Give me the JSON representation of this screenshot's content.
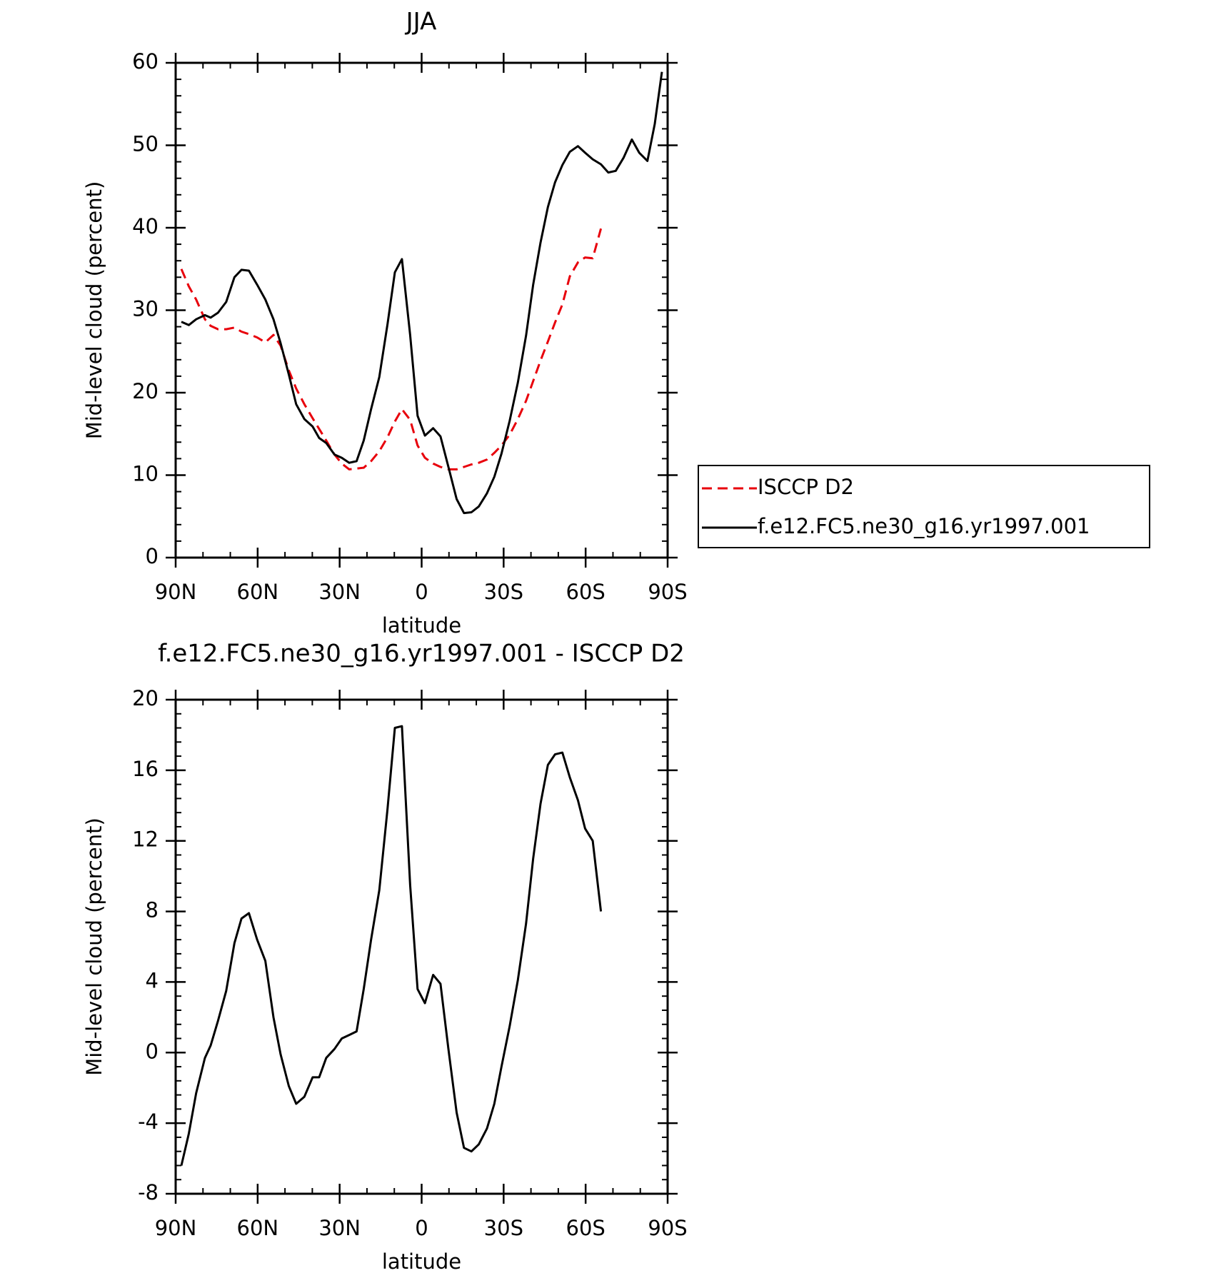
{
  "chart_data": [
    {
      "type": "line",
      "title": "JJA",
      "xlabel": "latitude",
      "ylabel": "Mid-level cloud (percent)",
      "x": [
        87.9,
        85.2,
        82.5,
        79.3,
        77.2,
        74.5,
        71.5,
        68.5,
        65.9,
        63.2,
        60.2,
        57.2,
        54.2,
        51.6,
        48.6,
        45.9,
        42.9,
        39.9,
        37.5,
        34.9,
        31.9,
        29.2,
        26.5,
        23.8,
        21.2,
        18.5,
        15.5,
        12.5,
        9.8,
        7.2,
        4.2,
        1.5,
        -1.2,
        -4.2,
        -6.9,
        -9.8,
        -12.8,
        -15.5,
        -18.2,
        -20.9,
        -23.9,
        -26.6,
        -29.2,
        -32.2,
        -35.2,
        -38.2,
        -40.8,
        -43.5,
        -46.2,
        -48.8,
        -51.5,
        -54.2,
        -57.2,
        -59.8,
        -62.6,
        -65.6,
        -68.3,
        -71.0,
        -73.9,
        -76.9,
        -79.6,
        -82.6,
        -85.3,
        -87.9
      ],
      "series": [
        {
          "name": "ISCCP D2",
          "color": "#e8000b",
          "dash": true,
          "values": [
            35.0,
            32.9,
            31.3,
            28.9,
            28.1,
            27.7,
            27.7,
            27.9,
            27.4,
            27.1,
            26.7,
            26.1,
            27.0,
            25.7,
            22.7,
            20.5,
            18.6,
            16.9,
            15.6,
            14.2,
            12.5,
            11.4,
            10.7,
            10.8,
            10.9,
            11.7,
            12.9,
            14.6,
            16.5,
            18.0,
            16.7,
            13.6,
            12.1,
            11.4,
            11.0,
            10.7,
            10.7,
            11.0,
            11.3,
            11.5,
            11.9,
            12.7,
            13.6,
            14.9,
            16.8,
            19.0,
            21.4,
            23.9,
            26.2,
            28.5,
            30.7,
            34.1,
            35.8,
            36.4,
            36.3,
            39.9,
            null,
            null,
            null,
            null,
            null,
            null,
            null,
            null
          ]
        },
        {
          "name": "f.e12.FC5.ne30_g16.yr1997.001",
          "color": "#000000",
          "dash": false,
          "values": [
            28.6,
            28.2,
            28.9,
            29.4,
            29.1,
            29.7,
            31.0,
            34.0,
            34.9,
            34.8,
            33.1,
            31.3,
            28.9,
            26.0,
            22.2,
            18.6,
            16.8,
            15.9,
            14.5,
            13.9,
            12.5,
            12.1,
            11.5,
            11.7,
            14.2,
            18.0,
            21.9,
            28.3,
            34.6,
            36.2,
            27.0,
            17.2,
            14.8,
            15.7,
            14.7,
            11.0,
            7.1,
            5.4,
            5.5,
            6.2,
            7.8,
            9.8,
            12.6,
            16.6,
            21.2,
            26.9,
            33.1,
            38.2,
            42.5,
            45.5,
            47.6,
            49.2,
            49.9,
            49.1,
            48.3,
            47.7,
            46.7,
            46.9,
            48.5,
            50.7,
            49.1,
            48.1,
            52.6,
            58.9
          ]
        }
      ],
      "xlim": [
        90,
        -90
      ],
      "xticks": [
        {
          "value": 90,
          "label": "90N"
        },
        {
          "value": 60,
          "label": "60N"
        },
        {
          "value": 30,
          "label": "30N"
        },
        0,
        {
          "value": -30,
          "label": "30S"
        },
        {
          "value": -60,
          "label": "60S"
        },
        {
          "value": -90,
          "label": "90S"
        }
      ],
      "ylim": [
        0,
        60
      ],
      "yticks": [
        0,
        10,
        20,
        30,
        40,
        50,
        60
      ],
      "grid": false,
      "legend": "right"
    },
    {
      "type": "line",
      "title": "f.e12.FC5.ne30_g16.yr1997.001 - ISCCP D2",
      "xlabel": "latitude",
      "ylabel": "Mid-level cloud (percent)",
      "x": [
        87.9,
        85.2,
        82.5,
        79.3,
        77.2,
        74.5,
        71.5,
        68.5,
        65.9,
        63.2,
        60.2,
        57.2,
        54.2,
        51.6,
        48.6,
        45.9,
        42.9,
        39.9,
        37.5,
        34.9,
        31.9,
        29.2,
        26.5,
        23.8,
        21.2,
        18.5,
        15.5,
        12.5,
        9.8,
        7.2,
        4.2,
        1.5,
        -1.2,
        -4.2,
        -6.9,
        -9.8,
        -12.8,
        -15.5,
        -18.2,
        -20.9,
        -23.9,
        -26.6,
        -29.2,
        -32.2,
        -35.2,
        -38.2,
        -40.8,
        -43.5,
        -46.2,
        -48.8,
        -51.5,
        -54.2,
        -57.2,
        -59.8,
        -62.6,
        -65.6
      ],
      "series": [
        {
          "color": "#000000",
          "dash": false,
          "values": [
            -6.4,
            -4.6,
            -2.3,
            -0.3,
            0.4,
            1.8,
            3.5,
            6.2,
            7.6,
            7.9,
            6.4,
            5.2,
            2.0,
            -0.1,
            -1.9,
            -2.9,
            -2.5,
            -1.4,
            -1.4,
            -0.3,
            0.2,
            0.8,
            1.0,
            1.2,
            3.6,
            6.4,
            9.2,
            13.8,
            18.4,
            18.5,
            9.5,
            3.6,
            2.8,
            4.4,
            3.9,
            0.2,
            -3.4,
            -5.4,
            -5.6,
            -5.2,
            -4.3,
            -2.9,
            -0.8,
            1.5,
            4.1,
            7.3,
            11.0,
            14.1,
            16.3,
            16.9,
            17.0,
            15.6,
            14.3,
            12.7,
            12.0,
            8.0
          ]
        }
      ],
      "xlim": [
        90,
        -90
      ],
      "xticks": [
        {
          "value": 90,
          "label": "90N"
        },
        {
          "value": 60,
          "label": "60N"
        },
        {
          "value": 30,
          "label": "30N"
        },
        0,
        {
          "value": -30,
          "label": "30S"
        },
        {
          "value": -60,
          "label": "60S"
        },
        {
          "value": -90,
          "label": "90S"
        }
      ],
      "ylim": [
        -8,
        20
      ],
      "yticks": [
        -8,
        -4,
        0,
        4,
        8,
        12,
        16,
        20
      ],
      "grid": false
    }
  ]
}
